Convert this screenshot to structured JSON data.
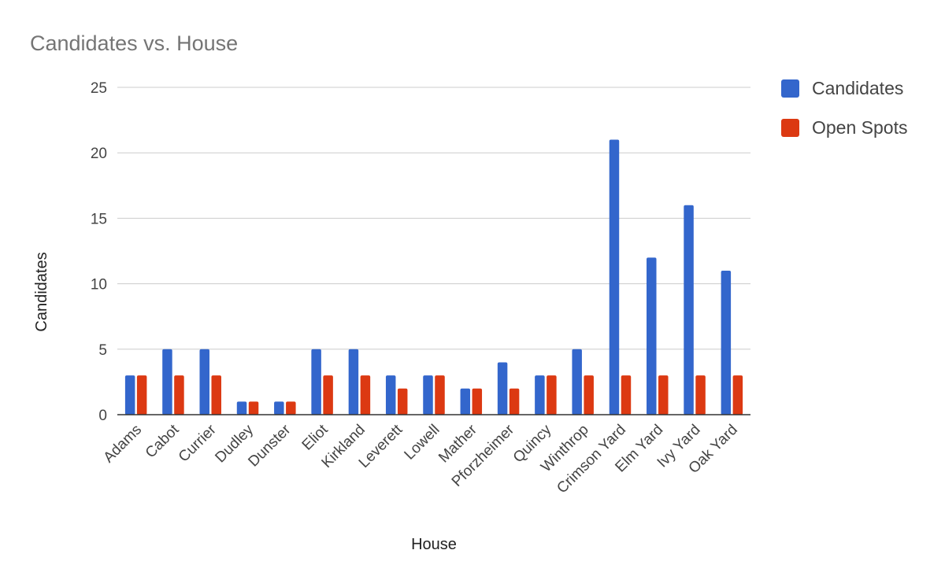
{
  "chart_data": {
    "type": "bar",
    "title": "Candidates vs. House",
    "xlabel": "House",
    "ylabel": "Candidates",
    "ylim": [
      0,
      25
    ],
    "yticks": [
      0,
      5,
      10,
      15,
      20,
      25
    ],
    "grid": true,
    "legend_position": "right",
    "categories": [
      "Adams",
      "Cabot",
      "Currier",
      "Dudley",
      "Dunster",
      "Eliot",
      "Kirkland",
      "Leverett",
      "Lowell",
      "Mather",
      "Pforzheimer",
      "Quincy",
      "Winthrop",
      "Crimson Yard",
      "Elm Yard",
      "Ivy Yard",
      "Oak Yard"
    ],
    "series": [
      {
        "name": "Candidates",
        "color": "#3366cc",
        "values": [
          3,
          5,
          5,
          1,
          1,
          5,
          5,
          3,
          3,
          2,
          4,
          3,
          5,
          21,
          12,
          16,
          11
        ]
      },
      {
        "name": "Open Spots",
        "color": "#dc3912",
        "values": [
          3,
          3,
          3,
          1,
          1,
          3,
          3,
          2,
          3,
          2,
          2,
          3,
          3,
          3,
          3,
          3,
          3
        ]
      }
    ]
  }
}
